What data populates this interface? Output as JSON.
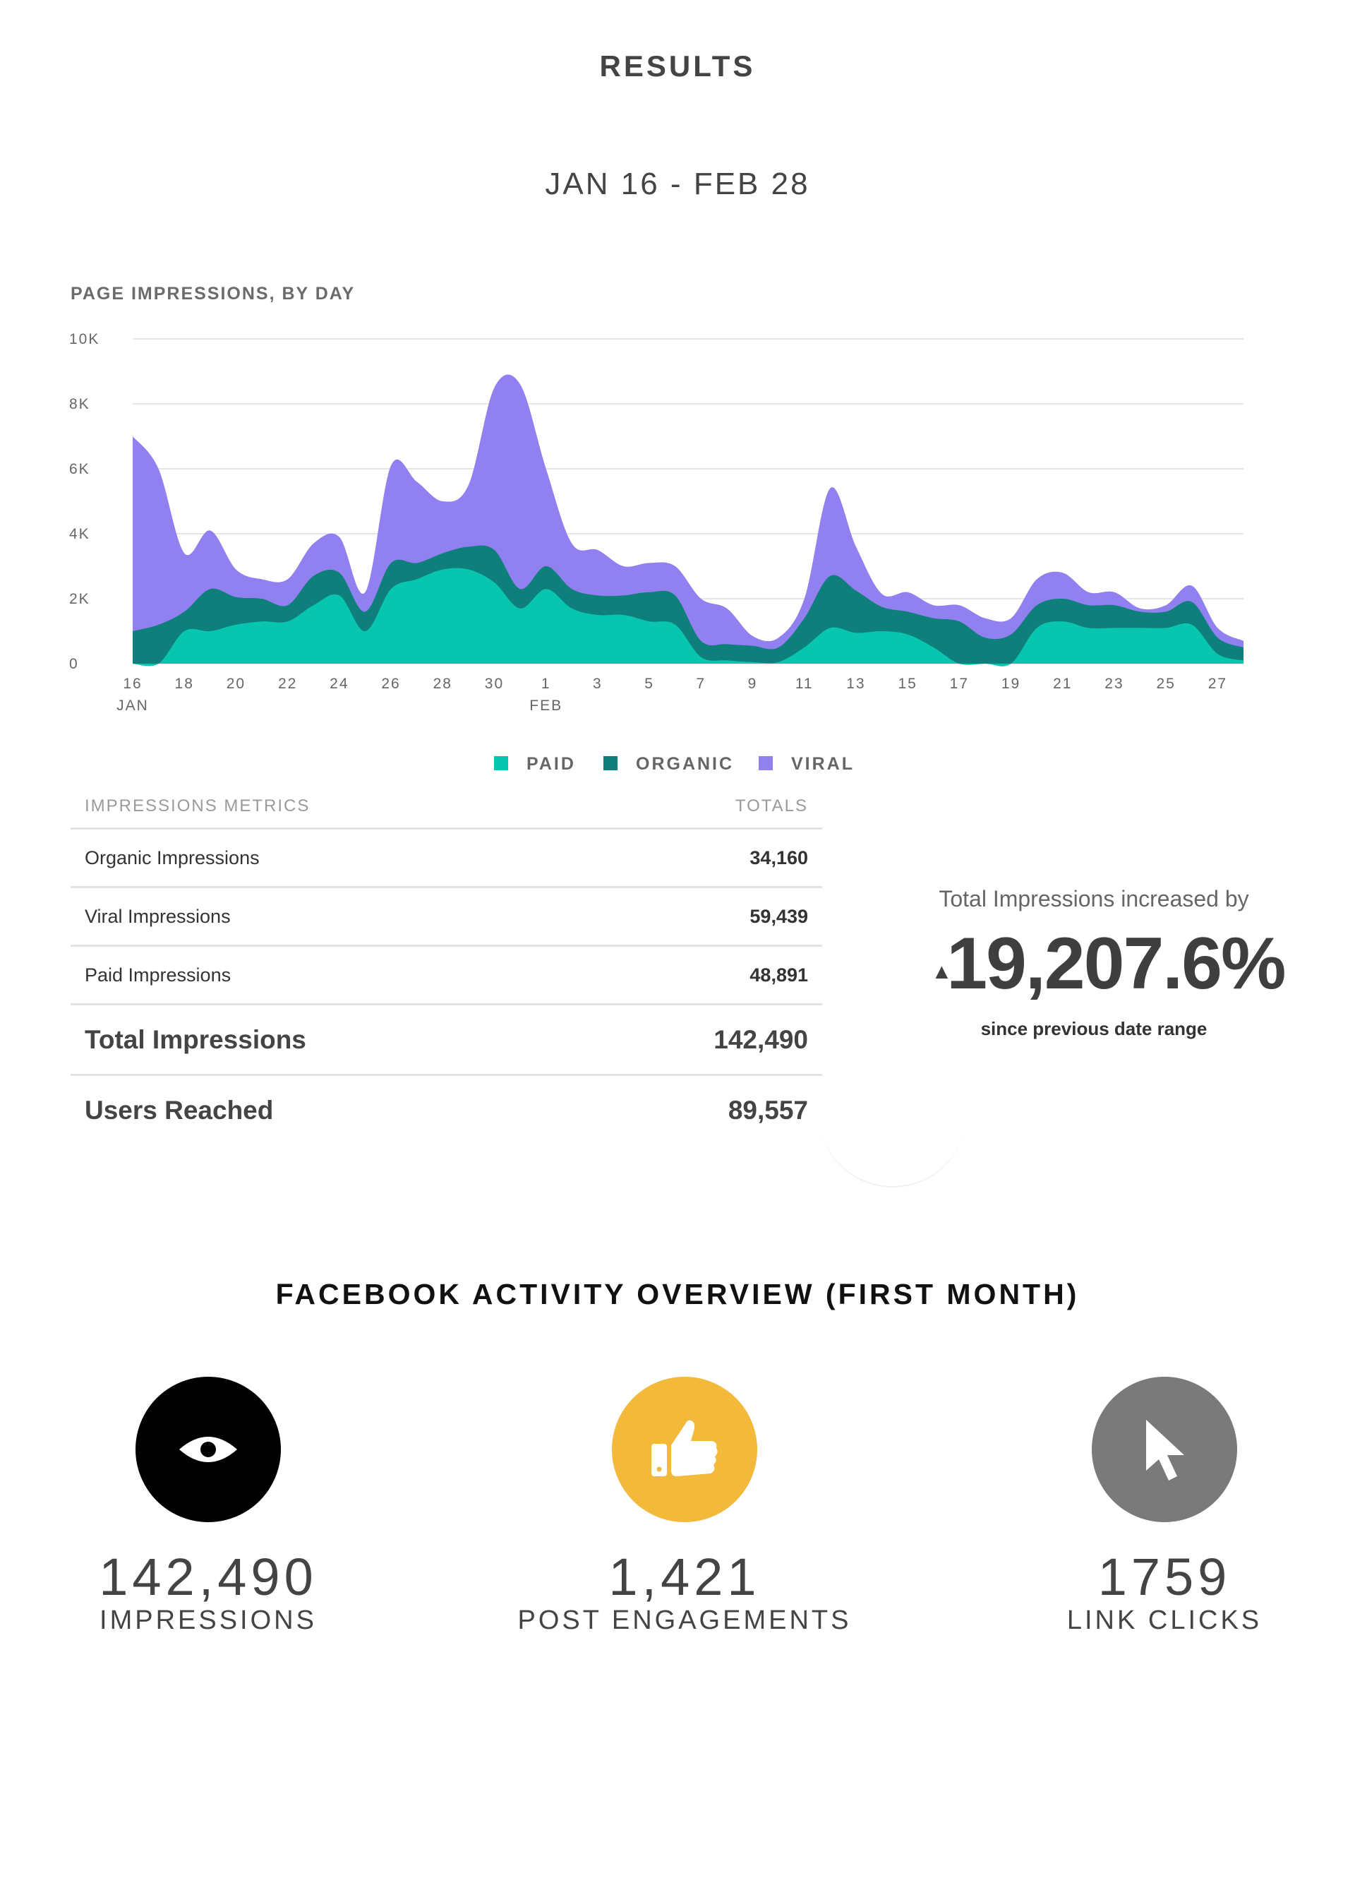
{
  "header": {
    "title": "RESULTS",
    "date_range": "JAN 16 - FEB 28"
  },
  "chart_data": {
    "type": "area",
    "stacked": true,
    "title": "PAGE IMPRESSIONS, BY DAY",
    "ylim": [
      0,
      10000
    ],
    "y_ticks": [
      0,
      2000,
      4000,
      6000,
      8000,
      10000
    ],
    "y_tick_labels": [
      "0",
      "2K",
      "4K",
      "6K",
      "8K",
      "10K"
    ],
    "x_start_label": "16",
    "x_tick_labels": [
      "16",
      "18",
      "20",
      "22",
      "24",
      "26",
      "28",
      "30",
      "1",
      "3",
      "5",
      "7",
      "9",
      "11",
      "13",
      "15",
      "17",
      "19",
      "21",
      "23",
      "25",
      "27"
    ],
    "x_month_labels": [
      {
        "at": "16",
        "label": "JAN"
      },
      {
        "at": "1",
        "label": "FEB"
      }
    ],
    "grid": true,
    "legend_position": "bottom",
    "x": [
      "Jan 16",
      "Jan 17",
      "Jan 18",
      "Jan 19",
      "Jan 20",
      "Jan 21",
      "Jan 22",
      "Jan 23",
      "Jan 24",
      "Jan 25",
      "Jan 26",
      "Jan 27",
      "Jan 28",
      "Jan 29",
      "Jan 30",
      "Jan 31",
      "Feb 1",
      "Feb 2",
      "Feb 3",
      "Feb 4",
      "Feb 5",
      "Feb 6",
      "Feb 7",
      "Feb 8",
      "Feb 9",
      "Feb 10",
      "Feb 11",
      "Feb 12",
      "Feb 13",
      "Feb 14",
      "Feb 15",
      "Feb 16",
      "Feb 17",
      "Feb 18",
      "Feb 19",
      "Feb 20",
      "Feb 21",
      "Feb 22",
      "Feb 23",
      "Feb 24",
      "Feb 25",
      "Feb 26",
      "Feb 27",
      "Feb 28"
    ],
    "series": [
      {
        "name": "PAID",
        "color": "#08c5b0",
        "values": [
          0,
          0,
          1000,
          1000,
          1200,
          1300,
          1300,
          1800,
          2100,
          1000,
          2300,
          2600,
          2900,
          2900,
          2500,
          1700,
          2300,
          1700,
          1500,
          1500,
          1300,
          1200,
          200,
          100,
          50,
          50,
          500,
          1100,
          950,
          1000,
          900,
          500,
          0,
          0,
          0,
          1100,
          1300,
          1100,
          1100,
          1100,
          1100,
          1200,
          300,
          100
        ]
      },
      {
        "name": "ORGANIC",
        "color": "#0e7f7b",
        "values": [
          1000,
          1200,
          600,
          1300,
          850,
          700,
          500,
          900,
          700,
          600,
          800,
          500,
          500,
          700,
          1000,
          600,
          700,
          600,
          600,
          600,
          900,
          900,
          500,
          500,
          500,
          450,
          900,
          1600,
          1300,
          750,
          700,
          900,
          1300,
          800,
          900,
          700,
          700,
          700,
          700,
          500,
          500,
          700,
          500,
          400
        ]
      },
      {
        "name": "VIRAL",
        "color": "#9180ef",
        "values": [
          6000,
          4800,
          1800,
          1800,
          850,
          600,
          800,
          1000,
          1100,
          600,
          3000,
          2500,
          1600,
          1900,
          5000,
          6300,
          3000,
          1400,
          1400,
          900,
          900,
          900,
          1300,
          1100,
          300,
          300,
          600,
          2700,
          1350,
          400,
          600,
          400,
          500,
          600,
          500,
          800,
          800,
          400,
          400,
          100,
          200,
          500,
          300,
          200
        ]
      }
    ]
  },
  "metrics_table": {
    "header_label": "IMPRESSIONS METRICS",
    "header_totals": "TOTALS",
    "rows": [
      {
        "label": "Organic Impressions",
        "value": "34,160"
      },
      {
        "label": "Viral Impressions",
        "value": "59,439"
      },
      {
        "label": "Paid Impressions",
        "value": "48,891"
      }
    ],
    "totals": [
      {
        "label": "Total Impressions",
        "value": "142,490"
      },
      {
        "label": "Users Reached",
        "value": "89,557"
      }
    ]
  },
  "increase": {
    "caption": "Total Impressions increased by",
    "arrow": "▲",
    "value": "19,207.6%",
    "sub": "since previous date range"
  },
  "overview": {
    "title": "FACEBOOK ACTIVITY OVERVIEW (FIRST MONTH)",
    "kpis": [
      {
        "icon": "eye-icon",
        "color": "#000000",
        "value": "142,490",
        "label": "IMPRESSIONS"
      },
      {
        "icon": "thumbs-up-icon",
        "color": "#f2b93b",
        "value": "1,421",
        "label": "POST ENGAGEMENTS"
      },
      {
        "icon": "cursor-icon",
        "color": "#7a7a7a",
        "value": "1759",
        "label": "LINK CLICKS"
      }
    ]
  }
}
